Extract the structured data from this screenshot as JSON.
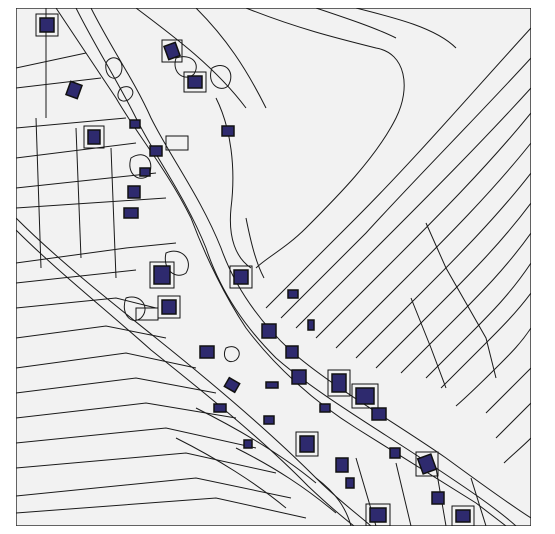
{
  "map": {
    "background_color": "#f2f2f2",
    "line_color": "#1a1a1a",
    "building_fill": "#2e2a6e",
    "building_stroke": "#111111",
    "frame_color": "#333333"
  }
}
